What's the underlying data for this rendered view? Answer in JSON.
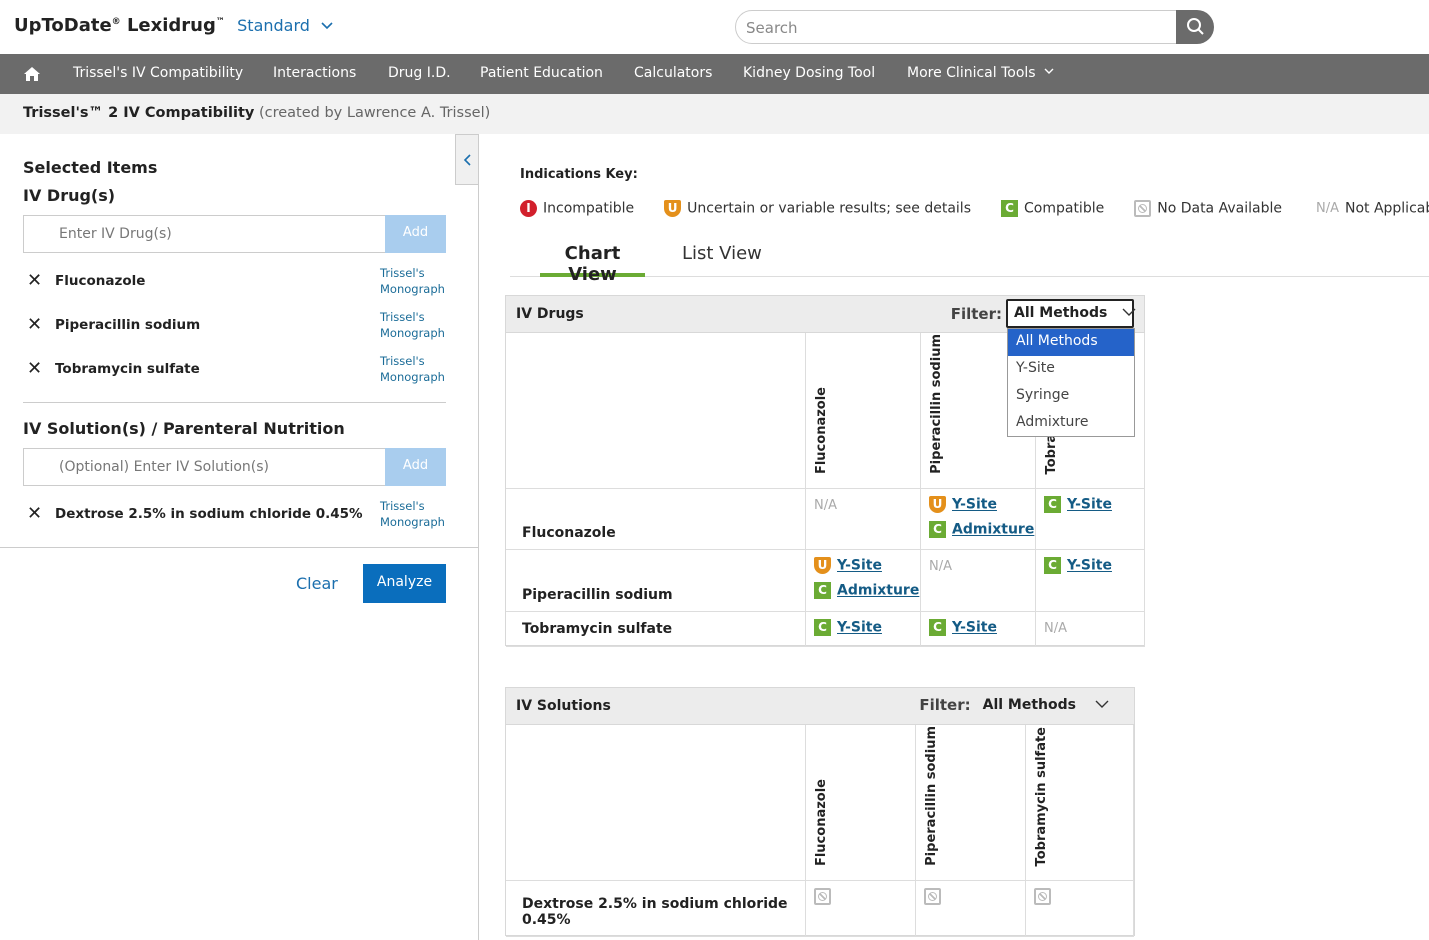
{
  "header": {
    "brand": "UpToDate",
    "brand_mark": "®",
    "product": "Lexidrug",
    "product_mark": "™",
    "edition": "Standard",
    "search_placeholder": "Search"
  },
  "nav": {
    "items": [
      "Trissel's IV Compatibility",
      "Interactions",
      "Drug I.D.",
      "Patient Education",
      "Calculators",
      "Kidney Dosing Tool",
      "More Clinical Tools"
    ]
  },
  "breadcrumb": {
    "title": "Trissel's™ 2 IV Compatibility",
    "subtitle": "(created by Lawrence A. Trissel)"
  },
  "sidebar": {
    "heading": "Selected Items",
    "drugs": {
      "label": "IV Drug(s)",
      "placeholder": "Enter IV Drug(s)",
      "add": "Add",
      "items": [
        {
          "name": "Fluconazole",
          "link": "Trissel's Monograph"
        },
        {
          "name": "Piperacillin sodium",
          "link": "Trissel's Monograph"
        },
        {
          "name": "Tobramycin sulfate",
          "link": "Trissel's Monograph"
        }
      ]
    },
    "solutions": {
      "label": "IV Solution(s) / Parenteral Nutrition",
      "placeholder": "(Optional) Enter IV Solution(s)",
      "add": "Add",
      "items": [
        {
          "name": "Dextrose 2.5% in sodium chloride 0.45%",
          "link": "Trissel's Monograph"
        }
      ]
    },
    "clear": "Clear",
    "analyze": "Analyze"
  },
  "key": {
    "title": "Indications Key:",
    "items": [
      {
        "status": "incompatible",
        "icon": "I",
        "label": "Incompatible"
      },
      {
        "status": "uncertain",
        "icon": "U",
        "label": "Uncertain or variable results; see details"
      },
      {
        "status": "compatible",
        "icon": "C",
        "label": "Compatible"
      },
      {
        "status": "no-data",
        "label": "No Data Available"
      },
      {
        "status": "not-applicable",
        "icon": "N/A",
        "label": "Not Applicable"
      }
    ]
  },
  "tabs": [
    "Chart View",
    "List View"
  ],
  "drug_table": {
    "title": "IV Drugs",
    "filter_label": "Filter:",
    "filter_value": "All Methods",
    "filter_options": [
      "All Methods",
      "Y-Site",
      "Syringe",
      "Admixture"
    ],
    "columns": [
      "Fluconazole",
      "Piperacillin sodium",
      "Tobramycin sulfate"
    ],
    "rows": [
      {
        "name": "Fluconazole",
        "cells": [
          {
            "na": "N/A"
          },
          {
            "entries": [
              {
                "status": "uncertain",
                "icon": "U",
                "method": "Y-Site"
              },
              {
                "status": "compatible",
                "icon": "C",
                "method": "Admixture"
              }
            ]
          },
          {
            "entries": [
              {
                "status": "compatible",
                "icon": "C",
                "method": "Y-Site"
              }
            ]
          }
        ]
      },
      {
        "name": "Piperacillin sodium",
        "cells": [
          {
            "entries": [
              {
                "status": "uncertain",
                "icon": "U",
                "method": "Y-Site"
              },
              {
                "status": "compatible",
                "icon": "C",
                "method": "Admixture"
              }
            ]
          },
          {
            "na": "N/A"
          },
          {
            "entries": [
              {
                "status": "compatible",
                "icon": "C",
                "method": "Y-Site"
              }
            ]
          }
        ]
      },
      {
        "name": "Tobramycin sulfate",
        "cells": [
          {
            "entries": [
              {
                "status": "compatible",
                "icon": "C",
                "method": "Y-Site"
              }
            ]
          },
          {
            "entries": [
              {
                "status": "compatible",
                "icon": "C",
                "method": "Y-Site"
              }
            ]
          },
          {
            "na": "N/A"
          }
        ]
      }
    ]
  },
  "solution_table": {
    "title": "IV Solutions",
    "filter_label": "Filter:",
    "filter_value": "All Methods",
    "columns": [
      "Fluconazole",
      "Piperacillin sodium",
      "Tobramycin sulfate"
    ],
    "rows": [
      {
        "name": "Dextrose 2.5% in sodium chloride 0.45%",
        "cells": [
          {
            "status": "no-data"
          },
          {
            "status": "no-data"
          },
          {
            "status": "no-data"
          }
        ]
      }
    ]
  }
}
